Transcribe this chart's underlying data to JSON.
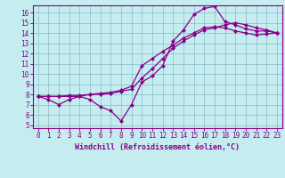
{
  "xlabel": "Windchill (Refroidissement éolien,°C)",
  "bg_color": "#c5edf0",
  "grid_color": "#8ab8c8",
  "line_color": "#880088",
  "xlim": [
    -0.5,
    23.5
  ],
  "ylim": [
    4.7,
    16.7
  ],
  "xticks": [
    0,
    1,
    2,
    3,
    4,
    5,
    6,
    7,
    8,
    9,
    10,
    11,
    12,
    13,
    14,
    15,
    16,
    17,
    18,
    19,
    20,
    21,
    22,
    23
  ],
  "yticks": [
    5,
    6,
    7,
    8,
    9,
    10,
    11,
    12,
    13,
    14,
    15,
    16
  ],
  "line1_x": [
    0,
    1,
    2,
    3,
    4,
    5,
    6,
    7,
    8,
    9,
    10,
    11,
    12,
    13,
    14,
    15,
    16,
    17,
    18,
    19,
    20,
    21,
    22,
    23
  ],
  "line1_y": [
    7.8,
    7.5,
    7.0,
    7.5,
    7.8,
    7.5,
    6.8,
    6.4,
    5.4,
    7.0,
    9.2,
    9.8,
    10.8,
    13.2,
    14.3,
    15.8,
    16.4,
    16.6,
    15.1,
    14.8,
    14.4,
    14.2,
    14.2,
    14.0
  ],
  "line2_x": [
    0,
    1,
    2,
    3,
    4,
    5,
    6,
    7,
    8,
    9,
    10,
    11,
    12,
    13,
    14,
    15,
    16,
    17,
    18,
    19,
    20,
    21,
    22,
    23
  ],
  "line2_y": [
    7.8,
    7.8,
    7.8,
    7.8,
    7.8,
    8.0,
    8.0,
    8.1,
    8.3,
    8.5,
    9.6,
    10.5,
    11.5,
    12.5,
    13.2,
    13.8,
    14.3,
    14.5,
    14.8,
    15.0,
    14.8,
    14.5,
    14.3,
    14.0
  ],
  "line3_x": [
    0,
    1,
    2,
    3,
    4,
    5,
    6,
    7,
    8,
    9,
    10,
    11,
    12,
    13,
    14,
    15,
    16,
    17,
    18,
    19,
    20,
    21,
    22,
    23
  ],
  "line3_y": [
    7.8,
    7.8,
    7.8,
    7.9,
    7.9,
    8.0,
    8.1,
    8.2,
    8.4,
    8.8,
    10.8,
    11.5,
    12.2,
    12.8,
    13.5,
    14.0,
    14.5,
    14.6,
    14.5,
    14.2,
    14.0,
    13.8,
    13.9,
    14.0
  ]
}
